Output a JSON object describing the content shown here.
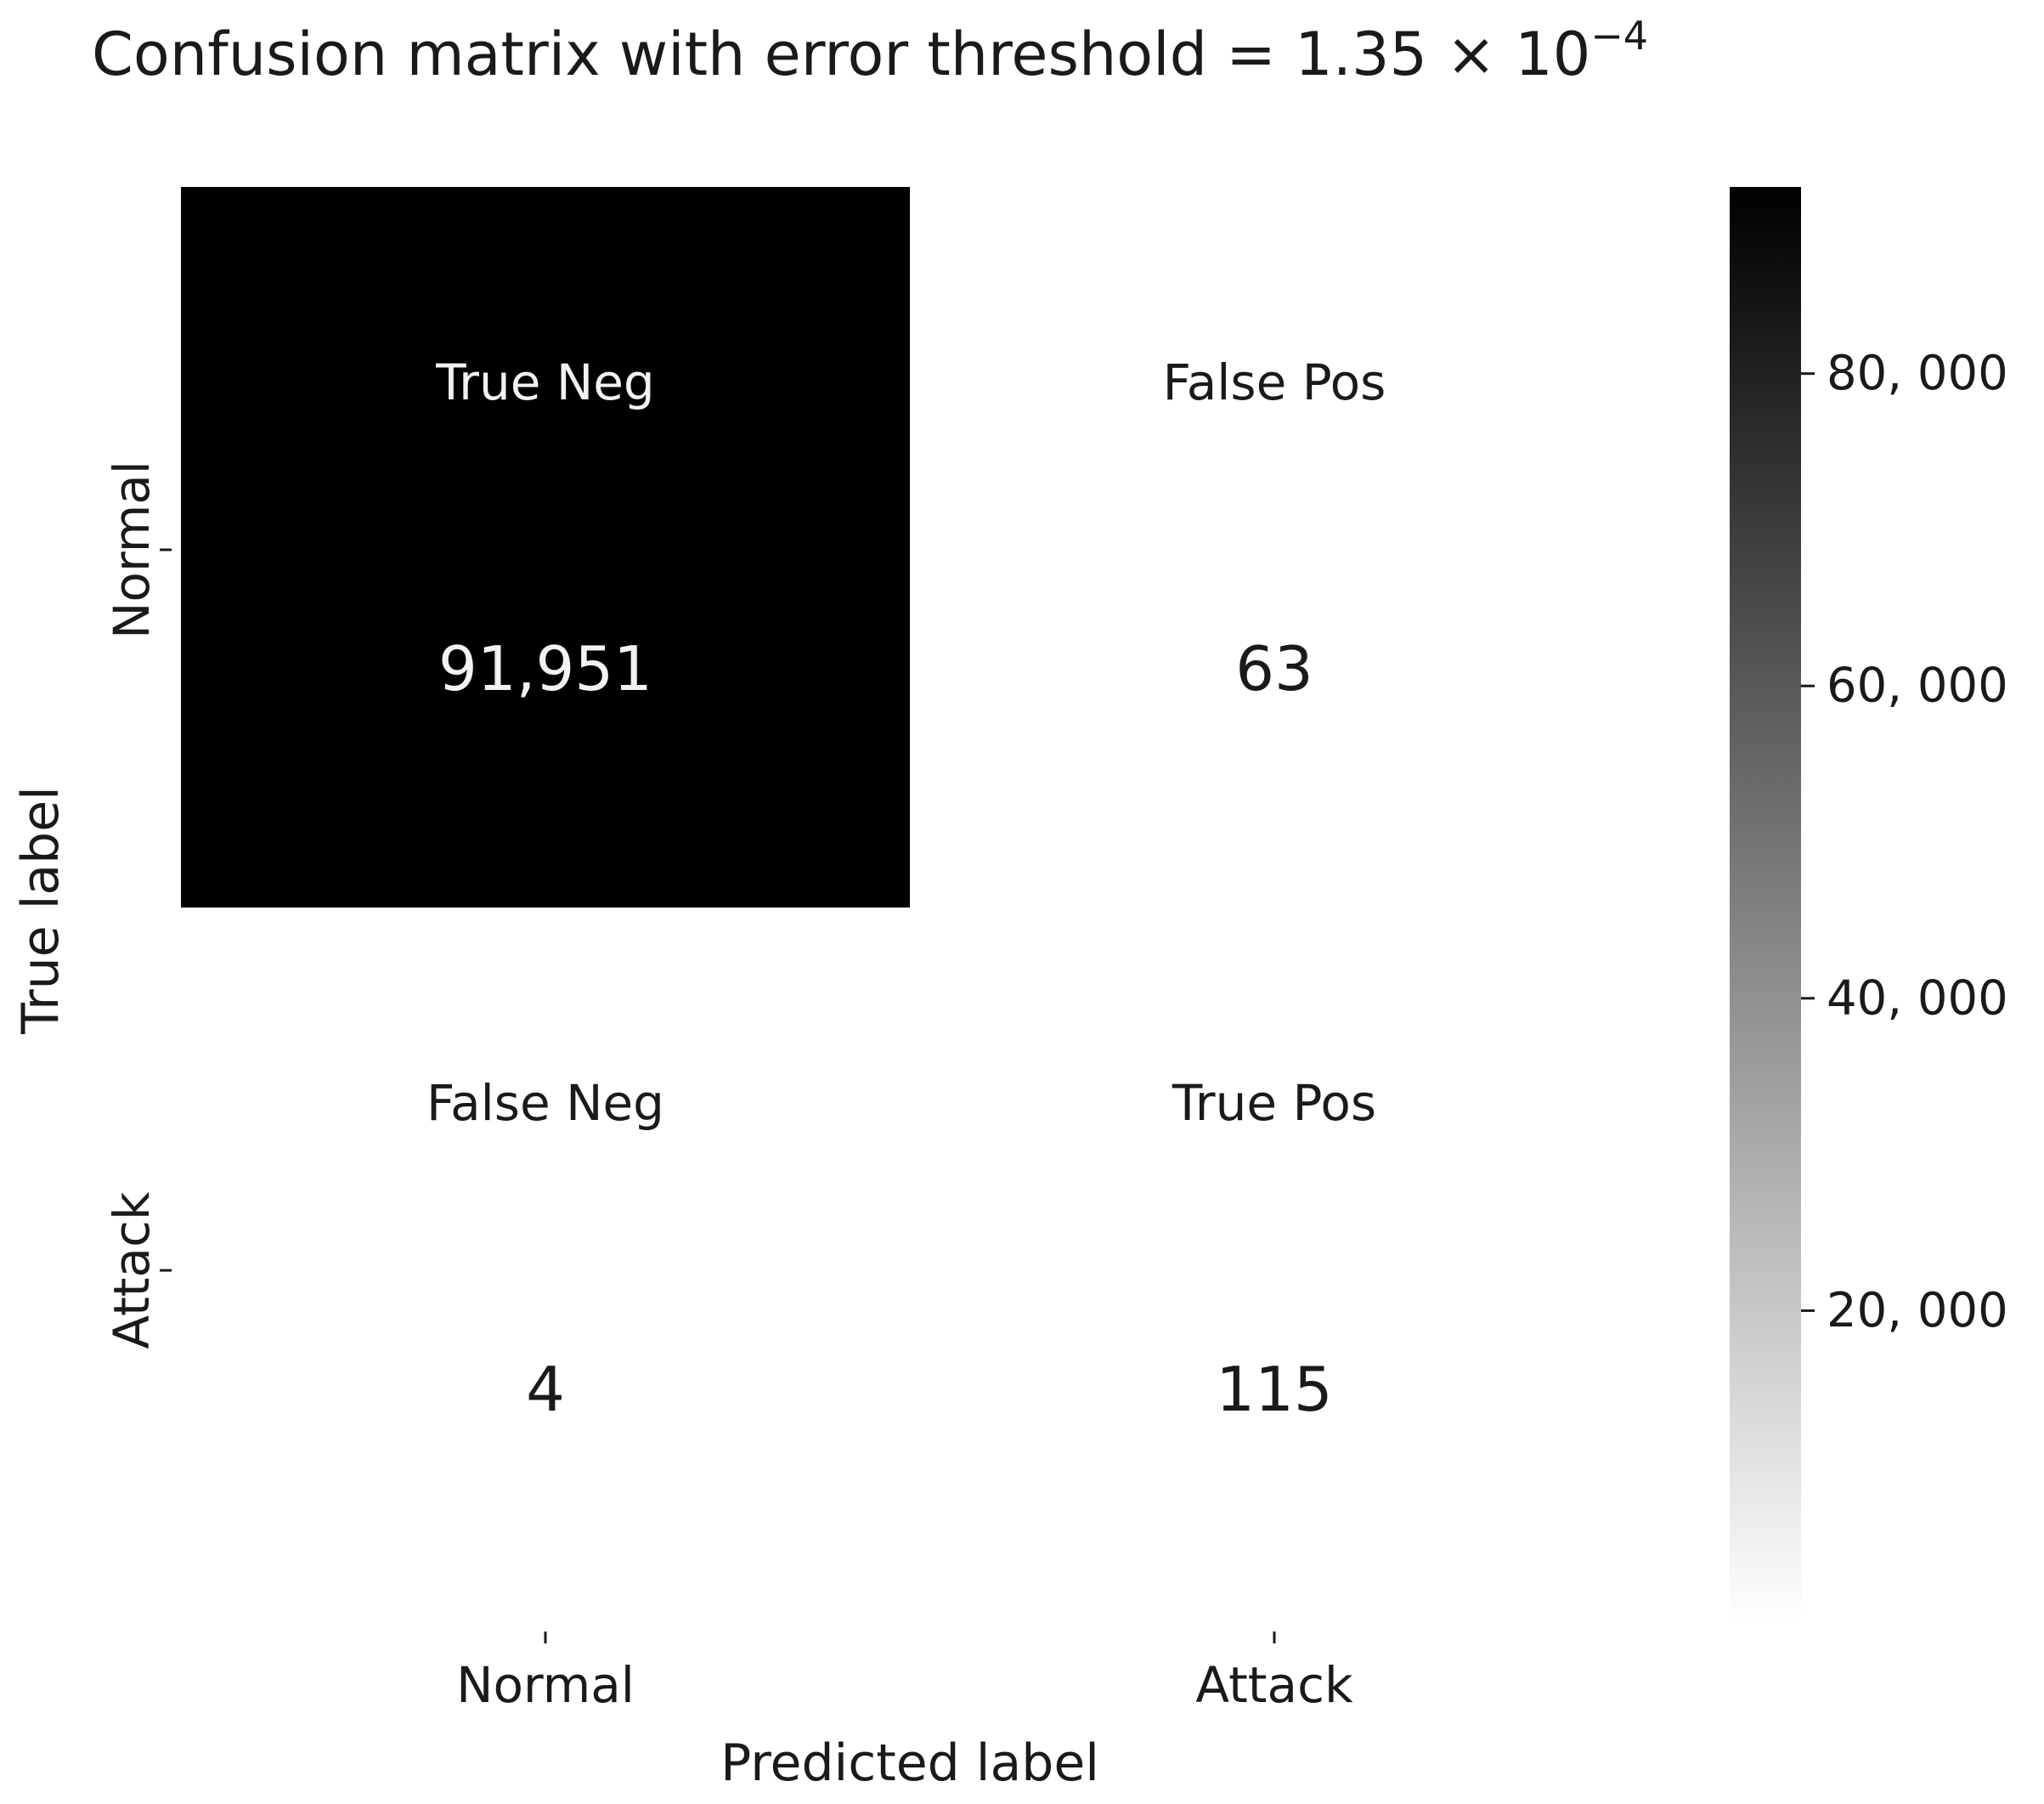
{
  "chart_data": {
    "type": "heatmap",
    "title": {
      "main": "Confusion matrix with error threshold = 1.35 × 10",
      "exponent": "−4"
    },
    "xlabel": "Predicted label",
    "ylabel": "True label",
    "x_categories": [
      "Normal",
      "Attack"
    ],
    "y_categories": [
      "Normal",
      "Attack"
    ],
    "values": [
      [
        91951,
        63
      ],
      [
        4,
        115
      ]
    ],
    "value_labels": [
      [
        "91,951",
        "63"
      ],
      [
        "4",
        "115"
      ]
    ],
    "cell_labels": [
      [
        "True Neg",
        "False Pos"
      ],
      [
        "False Neg",
        "True Pos"
      ]
    ],
    "colorbar": {
      "range": [
        0,
        91951
      ],
      "ticks": [
        20000,
        40000,
        60000,
        80000
      ],
      "tick_labels": [
        "20, 000",
        "40, 000",
        "60, 000",
        "80, 000"
      ],
      "color_low": "#ffffff",
      "color_high": "#000000"
    },
    "colormap": "Greys",
    "grid": false
  }
}
